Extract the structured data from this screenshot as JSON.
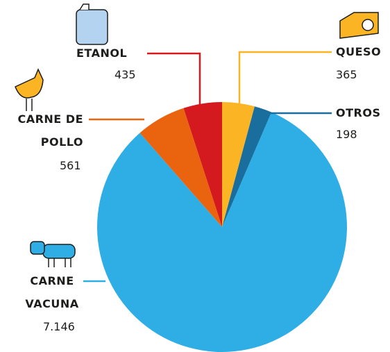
{
  "chart_data": {
    "type": "pie",
    "categories": [
      "QUESO",
      "OTROS",
      "CARNE VACUNA",
      "CARNE DE POLLO",
      "ETANOL"
    ],
    "values": [
      365,
      198,
      7146,
      561,
      435
    ],
    "value_labels": [
      "365",
      "198",
      "7.146",
      "561",
      "435"
    ],
    "colors": [
      "#fbb424",
      "#1a6e9e",
      "#2fade5",
      "#ea640f",
      "#d4191f"
    ]
  }
}
